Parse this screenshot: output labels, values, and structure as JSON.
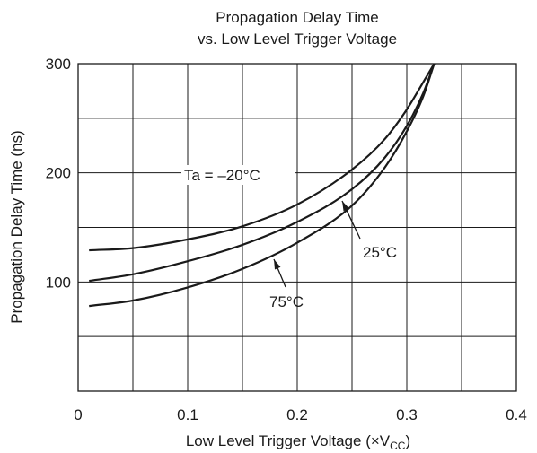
{
  "chart_data": {
    "type": "line",
    "title_line1": "Propagation Delay Time",
    "title_line2": "vs. Low Level Trigger Voltage",
    "xlabel": "Low Level Trigger Voltage  (×V",
    "xlabel_sub": "CC",
    "xlabel_close": ")",
    "ylabel": "Propagation Delay Time  (ns)",
    "xlim": [
      0,
      0.4
    ],
    "ylim": [
      0,
      300
    ],
    "x_ticks": [
      0,
      0.1,
      0.2,
      0.3,
      0.4
    ],
    "x_tick_labels": [
      "0",
      "0.1",
      "0.2",
      "0.3",
      "0.4"
    ],
    "y_ticks": [
      100,
      200,
      300
    ],
    "y_tick_labels": [
      "100",
      "200",
      "300"
    ],
    "grid": true,
    "series": [
      {
        "name": "Ta = –20°C",
        "x": [
          0.01,
          0.05,
          0.1,
          0.15,
          0.2,
          0.25,
          0.28,
          0.3,
          0.315,
          0.325
        ],
        "y": [
          129,
          131,
          139,
          151,
          171,
          203,
          231,
          258,
          283,
          300
        ]
      },
      {
        "name": "25°C",
        "x": [
          0.01,
          0.05,
          0.1,
          0.15,
          0.2,
          0.25,
          0.28,
          0.3,
          0.315,
          0.325
        ],
        "y": [
          101,
          107,
          119,
          134,
          155,
          185,
          214,
          243,
          273,
          300
        ]
      },
      {
        "name": "75°C",
        "x": [
          0.01,
          0.05,
          0.1,
          0.15,
          0.2,
          0.25,
          0.28,
          0.3,
          0.315,
          0.325
        ],
        "y": [
          78,
          83,
          95,
          112,
          136,
          170,
          205,
          238,
          270,
          300
        ]
      }
    ],
    "annotations": [
      {
        "text": "Ta = –20°C",
        "series": 0
      },
      {
        "text": "25°C",
        "series": 1
      },
      {
        "text": "75°C",
        "series": 2
      }
    ]
  }
}
